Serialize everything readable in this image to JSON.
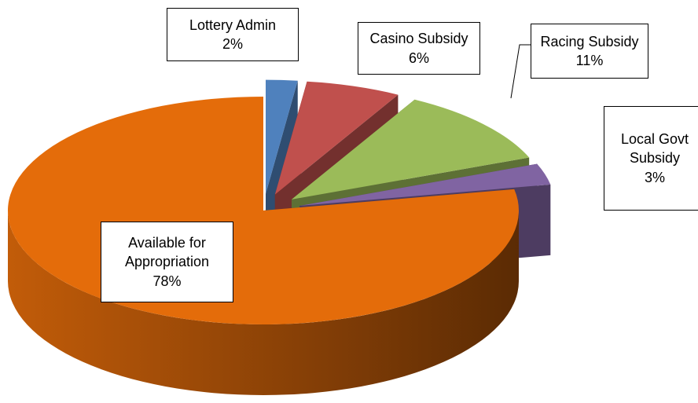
{
  "chart_data": {
    "type": "pie",
    "categories": [
      "Lottery Admin",
      "Casino Subsidy",
      "Racing Subsidy",
      "Local Govt Subsidy",
      "Available for Appropriation"
    ],
    "values": [
      2,
      6,
      11,
      3,
      78
    ],
    "value_labels": [
      "2%",
      "6%",
      "11%",
      "3%",
      "78%"
    ],
    "colors": [
      "#4f81bd",
      "#c0504d",
      "#9bbb59",
      "#8064a2",
      "#e46c0a"
    ]
  }
}
